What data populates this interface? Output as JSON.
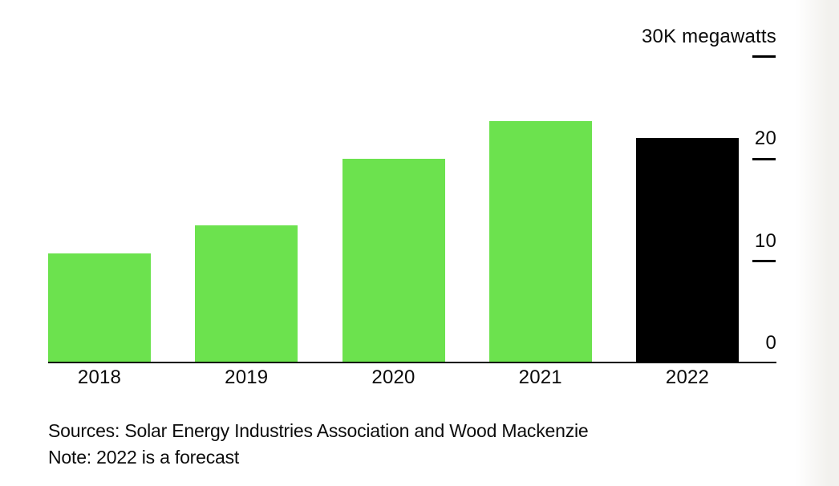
{
  "chart_data": {
    "type": "bar",
    "title": "",
    "categories": [
      "2018",
      "2019",
      "2020",
      "2021",
      "2022"
    ],
    "values": [
      10.7,
      13.4,
      19.9,
      23.6,
      22.0
    ],
    "forecast_index": 4,
    "xlabel": "",
    "ylabel": "30K megawatts",
    "ylim": [
      0,
      30
    ],
    "grid": false,
    "legend_position": "none",
    "yticks": [
      {
        "value": 30,
        "label": "30K megawatts",
        "dash": true
      },
      {
        "value": 20,
        "label": "20",
        "dash": true
      },
      {
        "value": 10,
        "label": "10",
        "dash": true
      },
      {
        "value": 0,
        "label": "0",
        "dash": false
      }
    ],
    "colors": {
      "bar": "#6ce24e",
      "forecast_bar": "#000000",
      "axis": "#000000"
    }
  },
  "footer": {
    "sources": "Sources: Solar Energy Industries Association and Wood Mackenzie",
    "note": "Note: 2022 is a forecast"
  }
}
